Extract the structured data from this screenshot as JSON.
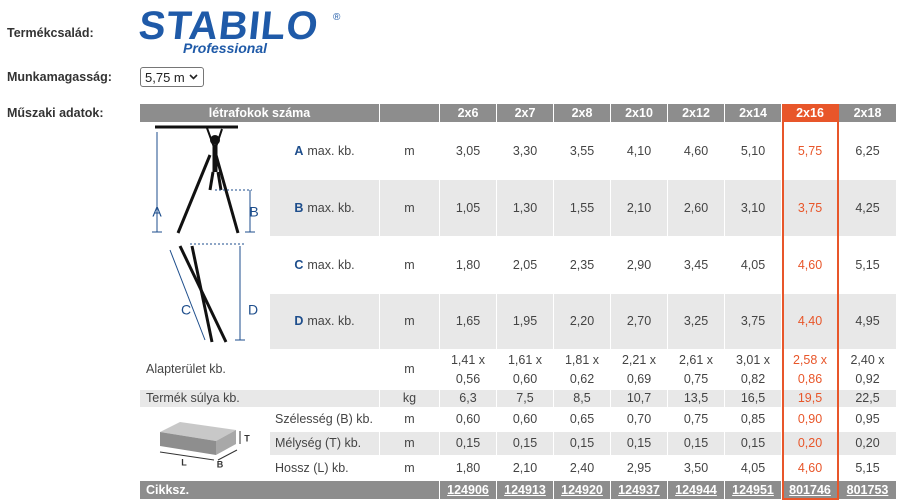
{
  "labels": {
    "family": "Termékcsalád:",
    "height": "Munkamagasság:",
    "specs": "Műszaki adatok:"
  },
  "logo": {
    "brand": "STABILO",
    "mark": "®",
    "sub": "Professional"
  },
  "select": "5,75 m",
  "diagram": {
    "ladder": [
      "A",
      "B",
      "C",
      "D"
    ],
    "box": [
      "T",
      "L",
      "B"
    ]
  },
  "table": {
    "header": "létrafokok száma",
    "columns": [
      "2x6",
      "2x7",
      "2x8",
      "2x10",
      "2x12",
      "2x14",
      "2x16",
      "2x18"
    ],
    "selected_column": 6,
    "rows": [
      {
        "letter": "A",
        "label": "max. kb.",
        "unit": "m",
        "values": [
          "3,05",
          "3,30",
          "3,55",
          "4,10",
          "4,60",
          "5,10",
          "5,75",
          "6,25"
        ]
      },
      {
        "letter": "B",
        "label": "max. kb.",
        "unit": "m",
        "values": [
          "1,05",
          "1,30",
          "1,55",
          "2,10",
          "2,60",
          "3,10",
          "3,75",
          "4,25"
        ]
      },
      {
        "letter": "C",
        "label": "max. kb.",
        "unit": "m",
        "values": [
          "1,80",
          "2,05",
          "2,35",
          "2,90",
          "3,45",
          "4,05",
          "4,60",
          "5,15"
        ]
      },
      {
        "letter": "D",
        "label": "max. kb.",
        "unit": "m",
        "values": [
          "1,65",
          "1,95",
          "2,20",
          "2,70",
          "3,25",
          "3,75",
          "4,40",
          "4,95"
        ]
      },
      {
        "label": "Alapterület kb.",
        "unit": "m",
        "values": [
          [
            "1,41 x",
            "0,56"
          ],
          [
            "1,61 x",
            "0,60"
          ],
          [
            "1,81 x",
            "0,62"
          ],
          [
            "2,21 x",
            "0,69"
          ],
          [
            "2,61 x",
            "0,75"
          ],
          [
            "3,01 x",
            "0,82"
          ],
          [
            "2,58 x",
            "0,86"
          ],
          [
            "2,40 x",
            "0,92"
          ]
        ]
      },
      {
        "label": "Termék súlya kb.",
        "unit": "kg",
        "values": [
          "6,3",
          "7,5",
          "8,5",
          "10,7",
          "13,5",
          "16,5",
          "19,5",
          "22,5"
        ]
      },
      {
        "label": "Szélesség (B) kb.",
        "unit": "m",
        "values": [
          "0,60",
          "0,60",
          "0,65",
          "0,70",
          "0,75",
          "0,85",
          "0,90",
          "0,95"
        ]
      },
      {
        "label": "Mélység (T) kb.",
        "unit": "m",
        "values": [
          "0,15",
          "0,15",
          "0,15",
          "0,15",
          "0,15",
          "0,15",
          "0,20",
          "0,20"
        ]
      },
      {
        "label": "Hossz (L) kb.",
        "unit": "m",
        "values": [
          "1,80",
          "2,10",
          "2,40",
          "2,95",
          "3,50",
          "4,05",
          "4,60",
          "5,15"
        ]
      }
    ],
    "footer": {
      "label": "Cikksz.",
      "values": [
        "124906",
        "124913",
        "124920",
        "124937",
        "124944",
        "124951",
        "801746",
        "801753"
      ]
    }
  }
}
